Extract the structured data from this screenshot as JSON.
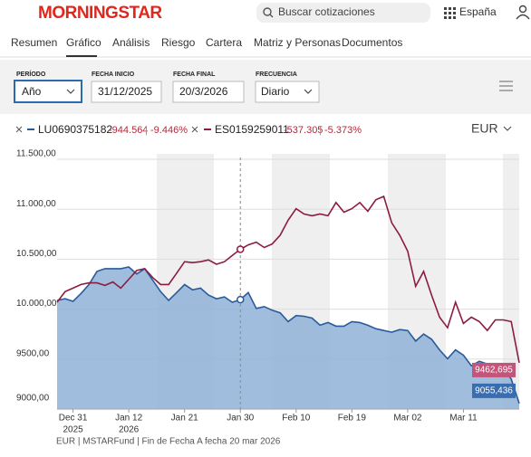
{
  "header": {
    "logo": "MORNINGSTAR",
    "search_placeholder": "Buscar cotizaciones",
    "region": "España"
  },
  "tabs": [
    "Resumen",
    "Gráfico",
    "Análisis",
    "Riesgo",
    "Cartera",
    "Matriz y Personas",
    "Documentos"
  ],
  "filters": [
    {
      "label": "PERÍODO",
      "value": "Año"
    },
    {
      "label": "FECHA INICIO",
      "value": "31/12/2025"
    },
    {
      "label": "FECHA FINAL",
      "value": "20/3/2026"
    },
    {
      "label": "FRECUENCIA",
      "value": "Diario"
    }
  ],
  "legend_stats": [
    {
      "change": "-944.564",
      "pct": "-9.446%"
    },
    {
      "change": "-537.305",
      "pct": "-5.373%"
    }
  ],
  "currency": "EUR",
  "footer": "EUR | MSTARFund | Fin de Fecha A fecha 20 mar 2026",
  "chart_data": {
    "type": "line",
    "categories": [
      null,
      null,
      "Dec 31",
      null,
      null,
      null,
      null,
      null,
      null,
      "Jan 12",
      null,
      null,
      null,
      null,
      null,
      null,
      "Jan 21",
      null,
      null,
      null,
      null,
      null,
      null,
      "Jan 30",
      null,
      null,
      null,
      null,
      null,
      null,
      "Feb 10",
      null,
      null,
      null,
      null,
      null,
      null,
      "Feb 19",
      null,
      null,
      null,
      null,
      null,
      null,
      "Mar 02",
      null,
      null,
      null,
      null,
      null,
      null,
      "Mar 11",
      null,
      null,
      null,
      null,
      null,
      null,
      null
    ],
    "category_years": [
      null,
      null,
      "2025",
      null,
      null,
      null,
      null,
      null,
      null,
      "2026",
      null,
      null,
      null,
      null,
      null,
      null,
      null,
      null,
      null,
      null,
      null,
      null,
      null,
      null,
      null,
      null,
      null,
      null,
      null,
      null,
      null,
      null,
      null,
      null,
      null,
      null,
      null,
      null,
      null,
      null,
      null,
      null,
      null,
      null,
      null,
      null,
      null,
      null,
      null,
      null,
      null,
      null,
      null,
      null,
      null,
      null,
      null,
      null,
      null
    ],
    "highlight_category": "Jan 30",
    "ylim": [
      9000,
      11500
    ],
    "yticks": [
      {
        "value": 9000,
        "label": "9000,00"
      },
      {
        "value": 9500,
        "label": "9500,00"
      },
      {
        "value": 10000,
        "label": "10.000,00"
      },
      {
        "value": 10500,
        "label": "10.500,00"
      },
      {
        "value": 11000,
        "label": "11.000,00"
      },
      {
        "value": 11500,
        "label": "11.500,00"
      }
    ],
    "grid": true,
    "series": [
      {
        "name": "LU0690375182",
        "color": "#2a5b99",
        "fill": "#8fb1d8",
        "area": true,
        "end_label": "9055,436",
        "values": [
          10087,
          10104,
          10078,
          10157,
          10246,
          10378,
          10405,
          10405,
          10405,
          10422,
          10352,
          10405,
          10290,
          10175,
          10087,
          10166,
          10246,
          10193,
          10210,
          10140,
          10104,
          10122,
          10069,
          10095,
          10166,
          10007,
          10025,
          9989,
          9963,
          9875,
          9936,
          9928,
          9910,
          9839,
          9866,
          9830,
          9830,
          9875,
          9866,
          9839,
          9804,
          9786,
          9769,
          9795,
          9786,
          9680,
          9751,
          9698,
          9592,
          9504,
          9592,
          9539,
          9433,
          9477,
          9450,
          9433,
          9415,
          9300,
          9055.436
        ]
      },
      {
        "name": "ES0159259011",
        "color": "#8c1c3f",
        "fill": "#c2557a",
        "area": false,
        "end_label": "9462,695",
        "values": [
          10069,
          10175,
          10210,
          10246,
          10263,
          10263,
          10237,
          10272,
          10210,
          10299,
          10387,
          10405,
          10316,
          10246,
          10246,
          10360,
          10475,
          10466,
          10475,
          10493,
          10449,
          10475,
          10537,
          10599,
          10643,
          10670,
          10617,
          10652,
          10740,
          10890,
          11005,
          10952,
          10935,
          10952,
          10935,
          11067,
          10970,
          11005,
          11067,
          10979,
          11094,
          11129,
          10864,
          10740,
          10581,
          10228,
          10378,
          10140,
          9919,
          9813,
          10069,
          9857,
          9919,
          9875,
          9786,
          9892,
          9892,
          9875,
          9462.695
        ]
      }
    ]
  }
}
